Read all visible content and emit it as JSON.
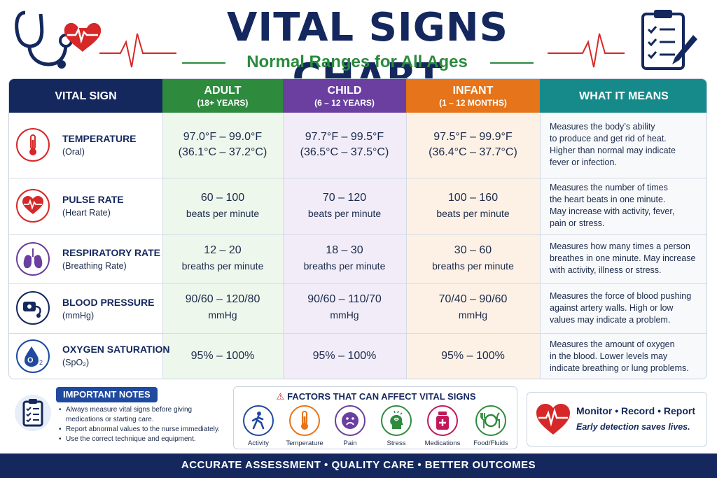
{
  "header": {
    "title": "VITAL SIGNS CHART",
    "subtitle": "Normal Ranges for All Ages"
  },
  "table": {
    "columns": [
      {
        "label": "VITAL SIGN",
        "sub": "",
        "color": "#14285e"
      },
      {
        "label": "ADULT",
        "sub": "(18+ YEARS)",
        "color": "#2e8b3e"
      },
      {
        "label": "CHILD",
        "sub": "(6 – 12 YEARS)",
        "color": "#6a3fa0"
      },
      {
        "label": "INFANT",
        "sub": "(1 – 12 MONTHS)",
        "color": "#e5741a"
      },
      {
        "label": "WHAT IT MEANS",
        "sub": "",
        "color": "#168a8a"
      }
    ],
    "rows": [
      {
        "name": "TEMPERATURE",
        "sub": "(Oral)",
        "icon": "thermometer-icon",
        "adult": [
          "97.0°F – 99.0°F",
          "(36.1°C – 37.2°C)"
        ],
        "child": [
          "97.7°F – 99.5°F",
          "(36.5°C – 37.5°C)"
        ],
        "infant": [
          "97.5°F – 99.9°F",
          "(36.4°C – 37.7°C)"
        ],
        "meaning": [
          "Measures the body’s ability",
          "to produce and get rid of heat.",
          "Higher than normal may indicate",
          "fever or infection."
        ]
      },
      {
        "name": "PULSE RATE",
        "sub": "(Heart Rate)",
        "icon": "heart-icon",
        "adult": [
          "60 – 100",
          "beats per minute"
        ],
        "child": [
          "70 – 120",
          "beats per minute"
        ],
        "infant": [
          "100 – 160",
          "beats per minute"
        ],
        "meaning": [
          "Measures the number of times",
          "the heart beats in one minute.",
          "May increase with activity, fever,",
          "pain or stress."
        ]
      },
      {
        "name": "RESPIRATORY RATE",
        "sub": "(Breathing Rate)",
        "icon": "lungs-icon",
        "adult": [
          "12 – 20",
          "breaths per minute"
        ],
        "child": [
          "18 – 30",
          "breaths per minute"
        ],
        "infant": [
          "30 – 60",
          "breaths per minute"
        ],
        "meaning": [
          "Measures how many times a person",
          "breathes in one minute. May increase",
          "with activity, illness or stress."
        ]
      },
      {
        "name": "BLOOD PRESSURE",
        "sub": "(mmHg)",
        "icon": "blood-pressure-cuff-icon",
        "adult": [
          "90/60 – 120/80",
          "mmHg"
        ],
        "child": [
          "90/60 – 110/70",
          "mmHg"
        ],
        "infant": [
          "70/40 – 90/60",
          "mmHg"
        ],
        "meaning": [
          "Measures the force of blood pushing",
          "against artery walls. High or low",
          "values may indicate a problem."
        ]
      },
      {
        "name": "OXYGEN SATURATION",
        "sub": "(SpO₂)",
        "icon": "oxygen-drop-icon",
        "adult": [
          "95% – 100%",
          ""
        ],
        "child": [
          "95% – 100%",
          ""
        ],
        "infant": [
          "95% – 100%",
          ""
        ],
        "meaning": [
          "Measures the amount of oxygen",
          "in the blood. Lower levels may",
          "indicate breathing or lung problems."
        ]
      }
    ]
  },
  "notes": {
    "title": "IMPORTANT NOTES",
    "items": [
      "Always measure vital signs before giving medications or starting care.",
      "Report abnormal values to the nurse immediately.",
      "Use the correct technique and equipment."
    ]
  },
  "factors": {
    "title": "FACTORS THAT CAN AFFECT VITAL SIGNS",
    "items": [
      {
        "label": "Activity",
        "icon": "walking-person-icon",
        "color": "#1f4aa0"
      },
      {
        "label": "Temperature",
        "icon": "thermometer-icon",
        "color": "#e5741a"
      },
      {
        "label": "Pain",
        "icon": "sad-face-icon",
        "color": "#6a3fa0"
      },
      {
        "label": "Stress",
        "icon": "stressed-head-icon",
        "color": "#2e8b3e"
      },
      {
        "label": "Medications",
        "icon": "medicine-bottle-icon",
        "color": "#c2185b"
      },
      {
        "label": "Food/Fluids",
        "icon": "plate-cutlery-icon",
        "color": "#2e8b3e"
      }
    ]
  },
  "monitor": {
    "line1": "Monitor • Record • Report",
    "line2": "Early detection saves lives."
  },
  "footer": {
    "text": "ACCURATE ASSESSMENT  •  QUALITY CARE  •  BETTER OUTCOMES"
  }
}
